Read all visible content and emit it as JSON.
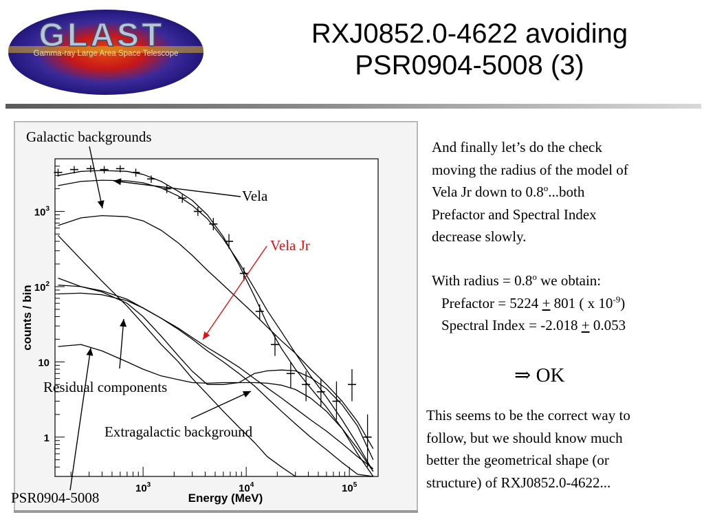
{
  "logo": {
    "name": "GLAST",
    "subtitle": "Gamma-ray Large Area Space Telescope"
  },
  "title": {
    "line1": "RXJ0852.0-4622 avoiding",
    "line2": "PSR0904-5008 (3)"
  },
  "chart_data": {
    "type": "line",
    "title": "",
    "xlabel": "Energy (MeV)",
    "ylabel": "counts / bin",
    "x_scale": "log",
    "y_scale": "log",
    "xlim": [
      140,
      190000
    ],
    "ylim": [
      0.3,
      5000
    ],
    "x_ticks": [
      {
        "value": 1000,
        "base": "10",
        "exp": "3"
      },
      {
        "value": 10000,
        "base": "10",
        "exp": "4"
      },
      {
        "value": 100000,
        "base": "10",
        "exp": "5"
      }
    ],
    "y_ticks": [
      {
        "value": 1,
        "base": "1",
        "exp": ""
      },
      {
        "value": 10,
        "base": "10",
        "exp": ""
      },
      {
        "value": 100,
        "base": "10",
        "exp": "2"
      },
      {
        "value": 1000,
        "base": "10",
        "exp": "3"
      }
    ],
    "data_points": {
      "x": [
        150,
        215,
        310,
        420,
        600,
        850,
        1200,
        1700,
        2400,
        3400,
        4800,
        6800,
        9500,
        13500,
        19000,
        27000,
        38000,
        53000,
        75000,
        106000,
        150000
      ],
      "y": [
        3300,
        3600,
        3700,
        3600,
        3700,
        3300,
        2700,
        2000,
        1500,
        1000,
        680,
        400,
        150,
        47,
        17,
        7,
        5,
        4,
        3,
        5,
        1
      ],
      "err_low": [
        2900,
        3200,
        3300,
        3200,
        3300,
        2900,
        2400,
        1750,
        1300,
        870,
        560,
        320,
        120,
        36,
        12,
        4.5,
        3,
        2.5,
        1.7,
        3,
        0.4
      ],
      "err_high": [
        3700,
        4000,
        4100,
        4000,
        4100,
        3700,
        3000,
        2250,
        1700,
        1150,
        820,
        500,
        180,
        58,
        23,
        10,
        7.5,
        6,
        5.5,
        8,
        2
      ]
    },
    "series": [
      {
        "x": [
          150,
          250,
          400,
          700,
          1000,
          1500,
          2200,
          3000,
          4200,
          6000,
          8500,
          12000,
          16000,
          22000,
          30000,
          42000,
          60000,
          85000,
          120000,
          170000
        ],
        "y": [
          3000,
          3400,
          3500,
          3400,
          3100,
          2500,
          1850,
          1400,
          900,
          460,
          195,
          75,
          32,
          15,
          8,
          4.5,
          2.5,
          1.3,
          0.6,
          0.3
        ]
      },
      {
        "x": [
          150,
          250,
          400,
          700,
          1000,
          1500,
          2200,
          3000,
          4200,
          6000,
          8500,
          12000,
          16000,
          22000,
          30000,
          42000,
          60000,
          85000,
          120000,
          170000
        ],
        "y": [
          2200,
          2500,
          2600,
          2550,
          2400,
          2050,
          1600,
          1200,
          800,
          430,
          210,
          95,
          48,
          25,
          13,
          6.5,
          3.4,
          1.7,
          0.8,
          0.35
        ]
      },
      {
        "x": [
          150,
          250,
          400,
          700,
          1000,
          1500,
          2200,
          3000,
          4200,
          6000,
          8500,
          12000,
          16000,
          22000,
          30000,
          42000,
          60000,
          85000,
          120000,
          170000
        ],
        "y": [
          650,
          820,
          880,
          850,
          750,
          560,
          380,
          260,
          165,
          105,
          67,
          43,
          29,
          19,
          13,
          8,
          5,
          3,
          1.6,
          0.7
        ]
      },
      {
        "x": [
          150,
          250,
          400,
          700,
          1000,
          1500,
          2200,
          3000,
          4200,
          6000,
          8500,
          12000,
          16000,
          22000,
          30000,
          42000,
          60000,
          85000,
          120000,
          170000
        ],
        "y": [
          480,
          230,
          118,
          55,
          32,
          17,
          10,
          6,
          3.7,
          2.2,
          1.35,
          0.85,
          0.55,
          0.4,
          0.3,
          0.3,
          0.3,
          0.3,
          0.3,
          0.3
        ]
      },
      {
        "x": [
          150,
          250,
          400,
          700,
          1000,
          1500,
          2200,
          3000,
          4200,
          6000,
          8500,
          12000,
          16000,
          22000,
          30000,
          42000,
          60000,
          85000,
          120000,
          170000
        ],
        "y": [
          130,
          100,
          88,
          68,
          52,
          38,
          28,
          21,
          15.5,
          11.5,
          8.5,
          6,
          4.5,
          3.3,
          2.4,
          1.7,
          1.2,
          0.82,
          0.55,
          0.38
        ]
      },
      {
        "x": [
          150,
          250,
          400,
          700,
          1000,
          1500,
          2200,
          3000,
          4200,
          6000,
          8500,
          12000,
          16000,
          22000,
          30000,
          42000,
          60000,
          85000,
          120000,
          170000
        ],
        "y": [
          80,
          82,
          78,
          65,
          52,
          38,
          27,
          20,
          14,
          10,
          7,
          4.8,
          3.3,
          2.2,
          1.5,
          1,
          0.68,
          0.46,
          0.32,
          0.3
        ]
      },
      {
        "x": [
          150,
          250,
          400,
          700,
          1000,
          1500,
          2200,
          3000,
          4200,
          6000,
          8500,
          12000,
          16000,
          22000,
          30000,
          42000,
          60000,
          85000,
          120000,
          170000
        ],
        "y": [
          105,
          100,
          85,
          60,
          40,
          22,
          12,
          7.5,
          5,
          5,
          5.3,
          7,
          7.6,
          7.8,
          7.6,
          6.2,
          4.4,
          2.7,
          1.4,
          0.5
        ]
      },
      {
        "x": [
          150,
          250,
          400,
          700,
          1000,
          1500,
          2200,
          3000,
          4200,
          6000,
          8500,
          12000,
          16000,
          22000,
          30000,
          42000,
          60000,
          85000,
          120000,
          170000
        ],
        "y": [
          16,
          17,
          14,
          10,
          8,
          6.5,
          5.8,
          5.3,
          5.2,
          5.3,
          5.3,
          5.3,
          5.2,
          4.9,
          4.3,
          3.3,
          2.2,
          1.3,
          0.7,
          0.35
        ]
      }
    ],
    "annotations": {
      "galactic": "Galactic backgrounds",
      "vela": "Vela",
      "velajr": "Vela Jr",
      "residual": "Residual components",
      "extragalactic": "Extragalactic background",
      "psr": "PSR0904-5008"
    },
    "colors": {
      "curves": "#000000",
      "velajr": "#e01010",
      "frame_border": "#b8b8b8"
    }
  },
  "text": {
    "desc": {
      "line1": "And finally let’s do the check",
      "line2": "moving the radius of  the model of",
      "line3a": "Vela Jr down to 0.8",
      "line3sup": "o",
      "line3b": "...both",
      "line4": "Prefactor and Spectral Index",
      "line5": "decrease slowly."
    },
    "result": {
      "line1a": "With radius = 0.8",
      "line1sup": "o",
      "line1b": " we obtain:",
      "pref_a": "Prefactor = 5224 ",
      "pref_pm": "+",
      "pref_b": " 801 ( x 10",
      "pref_sup": "-9",
      "pref_c": ")",
      "idx_a": "Spectral Index = -2.018 ",
      "idx_pm": "+",
      "idx_b": " 0.053"
    },
    "ok": {
      "arrow": "⇒",
      "label": " OK"
    },
    "closing": {
      "line1": "This seems to be the correct way to",
      "line2": "follow, but we should know much",
      "line3": "better the geometrical shape (or",
      "line4": "structure) of RXJ0852.0-4622..."
    }
  }
}
